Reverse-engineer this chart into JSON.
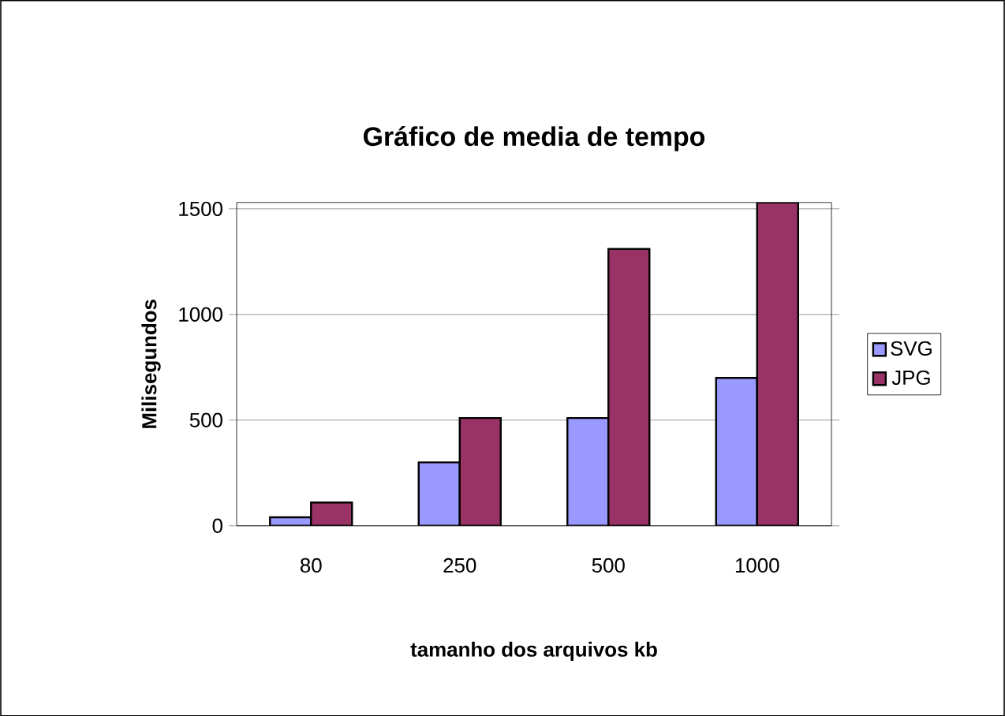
{
  "chart_data": {
    "type": "bar",
    "title": "Gráfico de media de tempo",
    "xlabel": "tamanho dos arquivos kb",
    "ylabel": "Milisegundos",
    "categories": [
      "80",
      "250",
      "500",
      "1000"
    ],
    "series": [
      {
        "name": "SVG",
        "color": "#9999ff",
        "values": [
          40,
          300,
          510,
          700
        ]
      },
      {
        "name": "JPG",
        "color": "#993366",
        "values": [
          110,
          510,
          1310,
          1530
        ]
      }
    ],
    "ylim": [
      0,
      1530
    ],
    "yticks": [
      0,
      500,
      1000,
      1500
    ],
    "grid": "y",
    "legend": "right"
  }
}
